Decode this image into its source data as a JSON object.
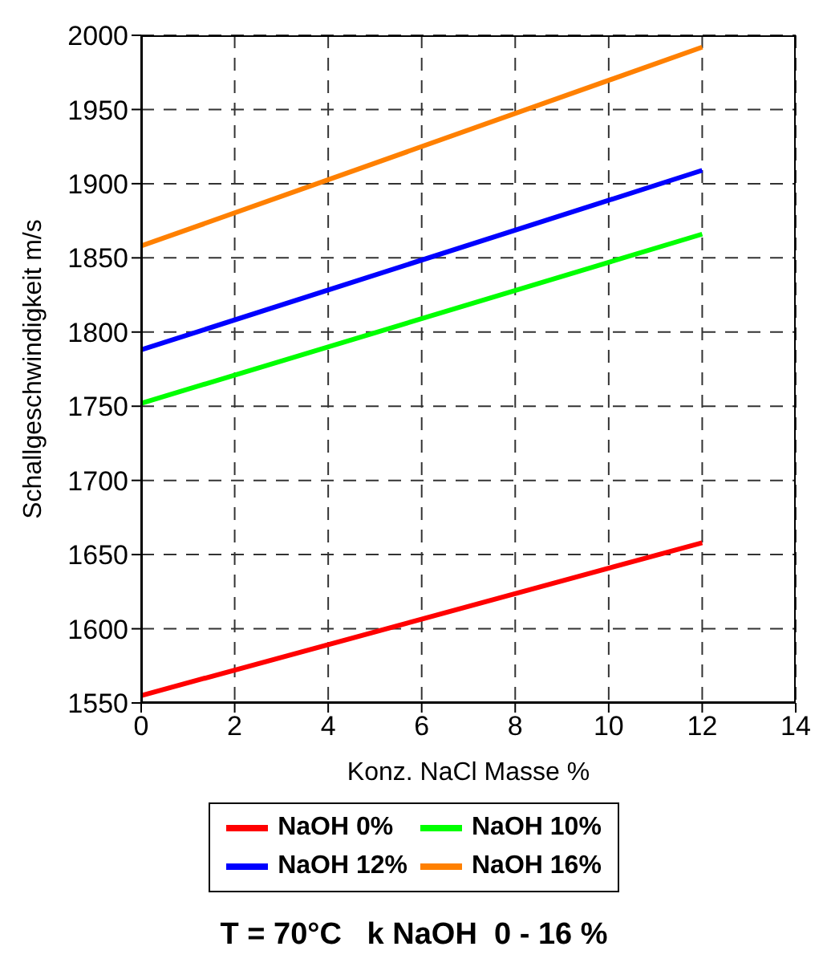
{
  "chart_data": {
    "type": "line",
    "xlabel": "Konz. NaCl Masse %",
    "ylabel": "Schallgeschwindigkeit m/s",
    "x": [
      0,
      12
    ],
    "series": [
      {
        "name": "NaOH 0%",
        "color": "#ff0000",
        "values": [
          1555,
          1658
        ]
      },
      {
        "name": "NaOH 10%",
        "color": "#00ff00",
        "values": [
          1752,
          1866
        ]
      },
      {
        "name": "NaOH 12%",
        "color": "#0000ff",
        "values": [
          1788,
          1909
        ]
      },
      {
        "name": "NaOH 16%",
        "color": "#ff8000",
        "values": [
          1858,
          1992
        ]
      }
    ],
    "xlim": [
      0,
      14
    ],
    "xticks": [
      0,
      2,
      4,
      6,
      8,
      10,
      12,
      14
    ],
    "ylim": [
      1550,
      2000
    ],
    "yticks": [
      1550,
      1600,
      1650,
      1700,
      1750,
      1800,
      1850,
      1900,
      1950,
      2000
    ],
    "grid": true,
    "legend": "bottom",
    "marker": "none",
    "line_style": "solid",
    "annotations": [
      "T = 70°C   k NaOH  0 - 16 %"
    ]
  }
}
